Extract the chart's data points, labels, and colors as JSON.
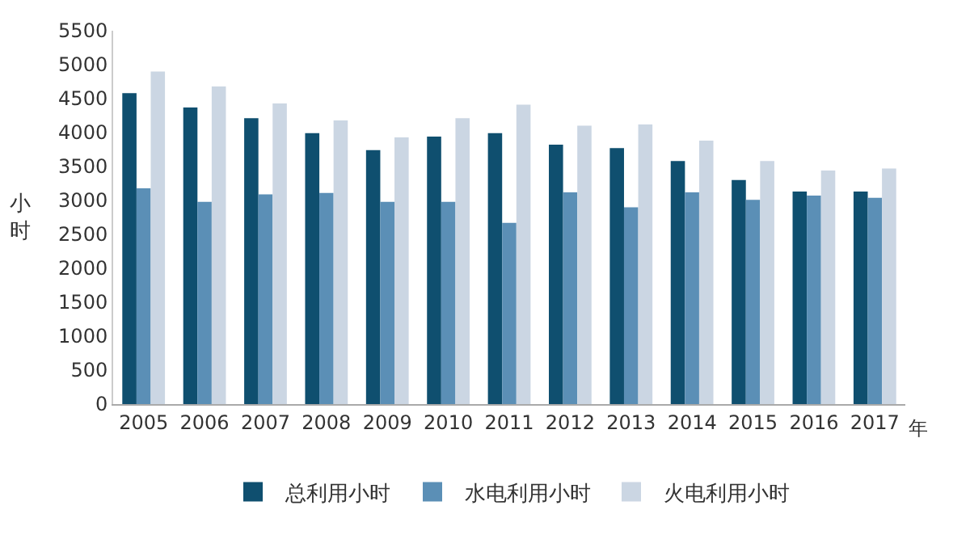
{
  "chart_data": {
    "type": "bar",
    "xlabel": "年",
    "ylabel": "小时",
    "categories": [
      "2005",
      "2006",
      "2007",
      "2008",
      "2009",
      "2010",
      "2011",
      "2012",
      "2013",
      "2014",
      "2015",
      "2016",
      "2017"
    ],
    "series": [
      {
        "name": "总利用小时",
        "color": "#0f4f6f",
        "values": [
          4580,
          4370,
          4210,
          3990,
          3740,
          3940,
          3990,
          3820,
          3770,
          3580,
          3300,
          3130,
          3130
        ]
      },
      {
        "name": "水电利用小时",
        "color": "#5b8fb6",
        "values": [
          3180,
          2980,
          3090,
          3110,
          2980,
          2980,
          2670,
          3120,
          2900,
          3120,
          3010,
          3070,
          3040
        ]
      },
      {
        "name": "火电利用小时",
        "color": "#cbd6e3",
        "values": [
          4900,
          4680,
          4430,
          4180,
          3930,
          4210,
          4410,
          4100,
          4120,
          3880,
          3580,
          3440,
          3470
        ]
      }
    ],
    "ylim": [
      0,
      5500
    ],
    "yticks": [
      0,
      500,
      1000,
      1500,
      2000,
      2500,
      3000,
      3500,
      4000,
      4500,
      5000,
      5500
    ],
    "legend": "bottom"
  }
}
